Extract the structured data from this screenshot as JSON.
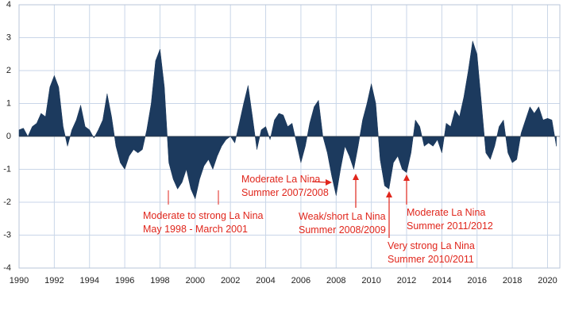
{
  "chart_data": {
    "type": "area",
    "color": "#1c3a5e",
    "grid": true,
    "x": [
      1990,
      1990.25,
      1990.5,
      1990.75,
      1991,
      1991.25,
      1991.5,
      1991.75,
      1992,
      1992.25,
      1992.5,
      1992.75,
      1993,
      1993.25,
      1993.5,
      1993.75,
      1994,
      1994.25,
      1994.5,
      1994.75,
      1995,
      1995.25,
      1995.5,
      1995.75,
      1996,
      1996.25,
      1996.5,
      1996.75,
      1997,
      1997.25,
      1997.5,
      1997.75,
      1998,
      1998.25,
      1998.5,
      1998.75,
      1999,
      1999.25,
      1999.5,
      1999.75,
      2000,
      2000.25,
      2000.5,
      2000.75,
      2001,
      2001.25,
      2001.5,
      2001.75,
      2002,
      2002.25,
      2002.5,
      2002.75,
      2003,
      2003.25,
      2003.5,
      2003.75,
      2004,
      2004.25,
      2004.5,
      2004.75,
      2005,
      2005.25,
      2005.5,
      2005.75,
      2006,
      2006.25,
      2006.5,
      2006.75,
      2007,
      2007.25,
      2007.5,
      2007.75,
      2008,
      2008.25,
      2008.5,
      2008.75,
      2009,
      2009.25,
      2009.5,
      2009.75,
      2010,
      2010.25,
      2010.5,
      2010.75,
      2011,
      2011.25,
      2011.5,
      2011.75,
      2012,
      2012.25,
      2012.5,
      2012.75,
      2013,
      2013.25,
      2013.5,
      2013.75,
      2014,
      2014.25,
      2014.5,
      2014.75,
      2015,
      2015.25,
      2015.5,
      2015.75,
      2016,
      2016.25,
      2016.5,
      2016.75,
      2017,
      2017.25,
      2017.5,
      2017.75,
      2018,
      2018.25,
      2018.5,
      2018.75,
      2019,
      2019.25,
      2019.5,
      2019.75,
      2020,
      2020.25,
      2020.5
    ],
    "values": [
      0.2,
      0.25,
      0.0,
      0.3,
      0.4,
      0.7,
      0.6,
      1.5,
      1.85,
      1.5,
      0.3,
      -0.3,
      0.2,
      0.5,
      0.95,
      0.3,
      0.2,
      -0.05,
      0.2,
      0.5,
      1.3,
      0.6,
      -0.3,
      -0.8,
      -1.0,
      -0.6,
      -0.4,
      -0.5,
      -0.4,
      0.2,
      1.0,
      2.3,
      2.65,
      1.5,
      -0.8,
      -1.3,
      -1.6,
      -1.4,
      -1.0,
      -1.6,
      -1.9,
      -1.3,
      -0.9,
      -0.7,
      -1.0,
      -0.6,
      -0.3,
      -0.1,
      0.0,
      -0.2,
      0.4,
      1.0,
      1.55,
      0.6,
      -0.4,
      0.2,
      0.3,
      -0.1,
      0.5,
      0.7,
      0.65,
      0.3,
      0.4,
      -0.2,
      -0.8,
      -0.3,
      0.4,
      0.9,
      1.1,
      0.0,
      -0.5,
      -1.2,
      -1.8,
      -1.0,
      -0.3,
      -0.6,
      -1.0,
      -0.3,
      0.5,
      1.0,
      1.6,
      1.0,
      -0.7,
      -1.5,
      -1.6,
      -0.8,
      -0.6,
      -1.0,
      -1.1,
      -0.5,
      0.5,
      0.3,
      -0.3,
      -0.2,
      -0.3,
      -0.1,
      -0.5,
      0.4,
      0.3,
      0.8,
      0.6,
      1.2,
      2.0,
      2.9,
      2.5,
      1.0,
      -0.5,
      -0.7,
      -0.3,
      0.3,
      0.5,
      -0.5,
      -0.8,
      -0.7,
      0.1,
      0.5,
      0.9,
      0.7,
      0.9,
      0.5,
      0.55,
      0.5,
      -0.3
    ],
    "xlim": [
      1990,
      2020.7
    ],
    "xticks": [
      1990,
      1992,
      1994,
      1996,
      1998,
      2000,
      2002,
      2004,
      2006,
      2008,
      2010,
      2012,
      2014,
      2016,
      2018,
      2020
    ],
    "ylim": [
      -4,
      4
    ],
    "yticks": [
      -4,
      -3,
      -2,
      -1,
      0,
      1,
      2,
      3,
      4
    ],
    "annotations": [
      [
        "Moderate to strong La Nina",
        "May 1998 - March 2001"
      ],
      [
        "Moderate La Nina",
        "Summer 2007/2008"
      ],
      [
        "Weak/short La Nina",
        "Summer 2008/2009"
      ],
      [
        "Very strong La Nina",
        "Summer 2010/2011"
      ],
      [
        "Moderate La Nina",
        "Summer 2011/2012"
      ]
    ],
    "annotation_color": "#e0261c"
  }
}
